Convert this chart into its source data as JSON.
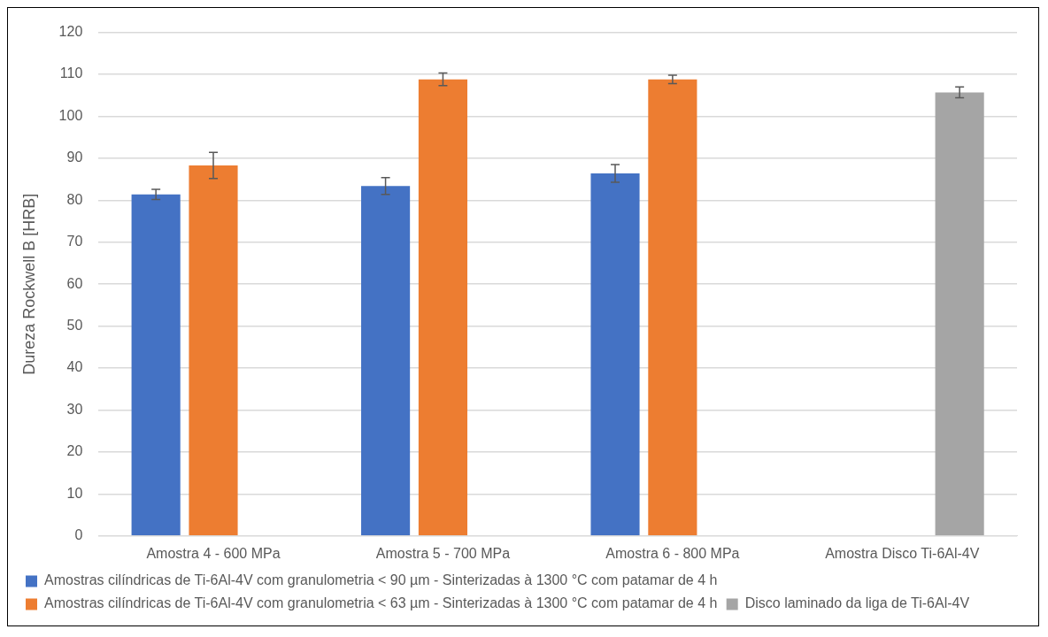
{
  "chart_data": {
    "type": "bar",
    "ylabel": "Dureza Rockwell B [HRB]",
    "categories": [
      "Amostra 4 - 600 MPa",
      "Amostra 5 - 700 MPa",
      "Amostra 6 - 800 MPa",
      "Amostra Disco Ti-6Al-4V"
    ],
    "series": [
      {
        "name": "Amostras cilíndricas de Ti-6Al-4V com granulometria < 90 µm - Sinterizadas à 1300 °C com patamar de 4 h",
        "color": "#4472c4",
        "values": [
          81.4,
          83.4,
          86.4,
          null
        ],
        "errors": [
          1.2,
          2,
          2.1,
          null
        ]
      },
      {
        "name": "Amostras cilíndricas de Ti-6Al-4V com granulometria < 63 µm - Sinterizadas à 1300 °C com patamar de 4 h",
        "color": "#ed7d31",
        "values": [
          88.3,
          108.8,
          108.8,
          null
        ],
        "errors": [
          3.1,
          1.5,
          1,
          null
        ]
      },
      {
        "name": "Disco laminado da liga de Ti-6Al-4V",
        "color": "#a5a5a5",
        "values": [
          0,
          0,
          0,
          105.7
        ],
        "errors": [
          null,
          null,
          null,
          1.3
        ]
      }
    ],
    "ylim": [
      0,
      120
    ],
    "yticks": [
      0,
      10,
      20,
      30,
      40,
      50,
      60,
      70,
      80,
      90,
      100,
      110,
      120
    ],
    "grid": "y",
    "legend": "bottom"
  }
}
